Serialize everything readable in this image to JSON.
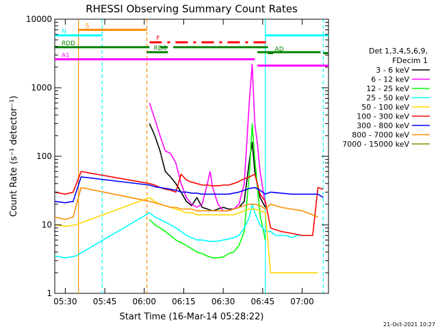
{
  "chart_data": {
    "type": "line",
    "title": "RHESSI Observing Summary Count Rates",
    "xlabel": "Start Time (16-Mar-14 05:28:22)",
    "ylabel": "Count Rate (s⁻¹ detector⁻¹)",
    "x_unit": "minutes",
    "xlim": [
      "05:26",
      "07:10"
    ],
    "ylim": [
      1,
      10000
    ],
    "yscale": "log",
    "x_ticks": [
      {
        "t": "05:30",
        "label": "05:30"
      },
      {
        "t": "05:45",
        "label": "05:45"
      },
      {
        "t": "06:00",
        "label": "06:00"
      },
      {
        "t": "06:15",
        "label": "06:15"
      },
      {
        "t": "06:30",
        "label": "06:30"
      },
      {
        "t": "06:45",
        "label": "06:45"
      },
      {
        "t": "07:00",
        "label": "07:00"
      }
    ],
    "y_ticks": [
      {
        "v": 1,
        "label": "1"
      },
      {
        "v": 10,
        "label": "10"
      },
      {
        "v": 100,
        "label": "100"
      },
      {
        "v": 1000,
        "label": "1000"
      },
      {
        "v": 10000,
        "label": "10000"
      }
    ],
    "legend": {
      "position": "right",
      "header": [
        "Det 1,3,4,5,6,9,",
        "FDecim 1"
      ],
      "entries": [
        {
          "name": "3 - 6 keV",
          "color": "#000000"
        },
        {
          "name": "6 - 12 keV",
          "color": "#ff00ff"
        },
        {
          "name": "12 - 25 keV",
          "color": "#00ff00"
        },
        {
          "name": "25 - 50 keV",
          "color": "#00ffff"
        },
        {
          "name": "50 - 100 keV",
          "color": "#ffd700"
        },
        {
          "name": "100 - 300 keV",
          "color": "#ff0000"
        },
        {
          "name": "300 - 800 keV",
          "color": "#0000ff"
        },
        {
          "name": "800 - 7000 keV",
          "color": "#ff8c00"
        },
        {
          "name": "7000 - 15000 keV",
          "color": "#8b8b00"
        }
      ]
    },
    "flags": [
      {
        "label": "S",
        "color": "#ff8c00",
        "y": 7000,
        "segments": [
          [
            "05:35",
            "06:01"
          ]
        ]
      },
      {
        "label": "N",
        "color": "#00ffff",
        "y": 5800,
        "segments": [
          [
            "05:26",
            "05:44"
          ],
          [
            "06:46",
            "07:10"
          ]
        ]
      },
      {
        "label": "F",
        "color": "#ff0000",
        "y": 4600,
        "dashed": true,
        "segments": [
          [
            "06:02",
            "06:47"
          ]
        ]
      },
      {
        "label": "RDD",
        "color": "#008000",
        "y": 3900,
        "segments": [
          [
            "05:26",
            "06:02"
          ],
          [
            "06:06",
            "06:09"
          ],
          [
            "06:11",
            "06:47"
          ]
        ]
      },
      {
        "label": "RD6",
        "color": "#008000",
        "y": 3300,
        "segments": [
          [
            "06:01",
            "06:09"
          ],
          [
            "06:43",
            "07:07"
          ]
        ]
      },
      {
        "label": "AD",
        "color": "#008000",
        "y": 3200,
        "segments": [
          [
            "06:47",
            "06:49"
          ],
          [
            "07:08",
            "07:10"
          ]
        ]
      },
      {
        "label": "A1",
        "color": "#ff00ff",
        "y": 2600,
        "segments": [
          [
            "05:26",
            "06:42"
          ]
        ]
      },
      {
        "label": "",
        "color": "#ff00ff",
        "y": 2100,
        "segments": [
          [
            "06:43",
            "07:10"
          ]
        ]
      }
    ],
    "vlines": [
      {
        "t": "05:35",
        "color": "#ff8c00",
        "dashed": false
      },
      {
        "t": "05:44",
        "color": "#00ffff",
        "dashed": true
      },
      {
        "t": "06:01",
        "color": "#ff8c00",
        "dashed": true
      },
      {
        "t": "06:46",
        "color": "#00ffff",
        "dashed": false
      },
      {
        "t": "07:08",
        "color": "#00ffff",
        "dashed": true
      }
    ],
    "series": [
      {
        "name": "3 - 6 keV",
        "color": "#000000",
        "points": [
          [
            "06:02",
            300
          ],
          [
            "06:04",
            200
          ],
          [
            "06:06",
            120
          ],
          [
            "06:08",
            60
          ],
          [
            "06:10",
            50
          ],
          [
            "06:12",
            40
          ],
          [
            "06:14",
            30
          ],
          [
            "06:16",
            22
          ],
          [
            "06:18",
            19
          ],
          [
            "06:20",
            25
          ],
          [
            "06:22",
            18
          ],
          [
            "06:24",
            17
          ],
          [
            "06:26",
            16
          ],
          [
            "06:28",
            17
          ],
          [
            "06:30",
            18
          ],
          [
            "06:32",
            17
          ],
          [
            "06:34",
            17
          ],
          [
            "06:36",
            18
          ],
          [
            "06:38",
            22
          ],
          [
            "06:40",
            90
          ],
          [
            "06:41",
            160
          ],
          [
            "06:42",
            60
          ],
          [
            "06:44",
            25
          ],
          [
            "06:46",
            18
          ]
        ]
      },
      {
        "name": "6 - 12 keV",
        "color": "#ff00ff",
        "points": [
          [
            "06:02",
            600
          ],
          [
            "06:04",
            350
          ],
          [
            "06:06",
            200
          ],
          [
            "06:08",
            120
          ],
          [
            "06:10",
            110
          ],
          [
            "06:12",
            80
          ],
          [
            "06:14",
            40
          ],
          [
            "06:16",
            25
          ],
          [
            "06:18",
            20
          ],
          [
            "06:20",
            18
          ],
          [
            "06:22",
            20
          ],
          [
            "06:24",
            40
          ],
          [
            "06:25",
            60
          ],
          [
            "06:26",
            35
          ],
          [
            "06:28",
            20
          ],
          [
            "06:30",
            16
          ],
          [
            "06:32",
            16
          ],
          [
            "06:34",
            17
          ],
          [
            "06:36",
            20
          ],
          [
            "06:38",
            40
          ],
          [
            "06:40",
            700
          ],
          [
            "06:41",
            2200
          ],
          [
            "06:42",
            300
          ],
          [
            "06:43",
            150
          ],
          [
            "06:44",
            60
          ],
          [
            "06:46",
            20
          ]
        ]
      },
      {
        "name": "12 - 25 keV",
        "color": "#00ff00",
        "points": [
          [
            "06:02",
            12
          ],
          [
            "06:04",
            10
          ],
          [
            "06:06",
            9
          ],
          [
            "06:08",
            8
          ],
          [
            "06:10",
            7
          ],
          [
            "06:12",
            6
          ],
          [
            "06:14",
            5.5
          ],
          [
            "06:16",
            5
          ],
          [
            "06:18",
            4.5
          ],
          [
            "06:20",
            4
          ],
          [
            "06:22",
            3.8
          ],
          [
            "06:24",
            3.5
          ],
          [
            "06:26",
            3.3
          ],
          [
            "06:28",
            3.3
          ],
          [
            "06:30",
            3.4
          ],
          [
            "06:32",
            3.8
          ],
          [
            "06:34",
            4
          ],
          [
            "06:36",
            5
          ],
          [
            "06:38",
            8
          ],
          [
            "06:40",
            60
          ],
          [
            "06:41",
            300
          ],
          [
            "06:42",
            90
          ],
          [
            "06:44",
            14
          ],
          [
            "06:46",
            6
          ]
        ]
      },
      {
        "name": "25 - 50 keV",
        "color": "#00ffff",
        "points": [
          [
            "05:26",
            3.5
          ],
          [
            "05:30",
            3.3
          ],
          [
            "05:34",
            3.5
          ],
          [
            "06:02",
            15
          ],
          [
            "06:04",
            13
          ],
          [
            "06:06",
            12
          ],
          [
            "06:08",
            11
          ],
          [
            "06:10",
            10
          ],
          [
            "06:12",
            9
          ],
          [
            "06:14",
            8
          ],
          [
            "06:16",
            7
          ],
          [
            "06:18",
            6.5
          ],
          [
            "06:20",
            6
          ],
          [
            "06:22",
            6
          ],
          [
            "06:24",
            5.8
          ],
          [
            "06:26",
            5.7
          ],
          [
            "06:28",
            5.8
          ],
          [
            "06:30",
            6
          ],
          [
            "06:32",
            6.2
          ],
          [
            "06:34",
            6.5
          ],
          [
            "06:36",
            7
          ],
          [
            "06:38",
            9
          ],
          [
            "06:40",
            13
          ],
          [
            "06:41",
            20
          ],
          [
            "06:42",
            15
          ],
          [
            "06:44",
            10
          ],
          [
            "06:46",
            8
          ],
          [
            "06:48",
            8
          ],
          [
            "06:50",
            7
          ],
          [
            "06:52",
            7
          ],
          [
            "06:54",
            7
          ],
          [
            "06:56",
            6.5
          ],
          [
            "06:58",
            7
          ],
          [
            "07:00",
            7
          ],
          [
            "07:02",
            7
          ],
          [
            "07:04",
            7
          ]
        ]
      },
      {
        "name": "50 - 100 keV",
        "color": "#ffd700",
        "points": [
          [
            "05:26",
            10
          ],
          [
            "05:30",
            9.5
          ],
          [
            "05:34",
            10
          ],
          [
            "06:02",
            25
          ],
          [
            "06:04",
            22
          ],
          [
            "06:06",
            20
          ],
          [
            "06:08",
            19
          ],
          [
            "06:10",
            18
          ],
          [
            "06:12",
            17
          ],
          [
            "06:14",
            16
          ],
          [
            "06:16",
            15
          ],
          [
            "06:18",
            15
          ],
          [
            "06:20",
            14
          ],
          [
            "06:22",
            14
          ],
          [
            "06:24",
            14
          ],
          [
            "06:26",
            14
          ],
          [
            "06:28",
            14
          ],
          [
            "06:30",
            14
          ],
          [
            "06:32",
            14
          ],
          [
            "06:34",
            14
          ],
          [
            "06:36",
            15
          ],
          [
            "06:38",
            16
          ],
          [
            "06:40",
            17
          ],
          [
            "06:42",
            17
          ],
          [
            "06:44",
            16
          ],
          [
            "06:46",
            15
          ],
          [
            "06:48",
            2
          ],
          [
            "07:06",
            2
          ]
        ]
      },
      {
        "name": "100 - 300 keV",
        "color": "#ff0000",
        "points": [
          [
            "05:26",
            30
          ],
          [
            "05:30",
            28
          ],
          [
            "05:33",
            30
          ],
          [
            "05:36",
            60
          ],
          [
            "06:02",
            40
          ],
          [
            "06:04",
            38
          ],
          [
            "06:06",
            35
          ],
          [
            "06:08",
            33
          ],
          [
            "06:10",
            32
          ],
          [
            "06:12",
            30
          ],
          [
            "06:14",
            55
          ],
          [
            "06:16",
            45
          ],
          [
            "06:18",
            42
          ],
          [
            "06:20",
            40
          ],
          [
            "06:22",
            38
          ],
          [
            "06:24",
            38
          ],
          [
            "06:26",
            37
          ],
          [
            "06:28",
            37
          ],
          [
            "06:30",
            38
          ],
          [
            "06:32",
            38
          ],
          [
            "06:34",
            40
          ],
          [
            "06:36",
            43
          ],
          [
            "06:38",
            47
          ],
          [
            "06:40",
            50
          ],
          [
            "06:42",
            55
          ],
          [
            "06:44",
            28
          ],
          [
            "06:46",
            22
          ],
          [
            "06:48",
            9
          ],
          [
            "06:52",
            8
          ],
          [
            "06:56",
            7.5
          ],
          [
            "07:00",
            7
          ],
          [
            "07:04",
            7
          ],
          [
            "07:06",
            35
          ],
          [
            "07:08",
            33
          ]
        ]
      },
      {
        "name": "300 - 800 keV",
        "color": "#0000ff",
        "points": [
          [
            "05:26",
            22
          ],
          [
            "05:30",
            21
          ],
          [
            "05:33",
            22
          ],
          [
            "05:36",
            50
          ],
          [
            "06:02",
            38
          ],
          [
            "06:04",
            36
          ],
          [
            "06:06",
            35
          ],
          [
            "06:08",
            34
          ],
          [
            "06:10",
            33
          ],
          [
            "06:12",
            32
          ],
          [
            "06:14",
            30
          ],
          [
            "06:16",
            30
          ],
          [
            "06:18",
            29
          ],
          [
            "06:20",
            29
          ],
          [
            "06:22",
            28
          ],
          [
            "06:24",
            28
          ],
          [
            "06:26",
            28
          ],
          [
            "06:28",
            28
          ],
          [
            "06:30",
            28
          ],
          [
            "06:32",
            28
          ],
          [
            "06:34",
            29
          ],
          [
            "06:36",
            30
          ],
          [
            "06:38",
            32
          ],
          [
            "06:40",
            34
          ],
          [
            "06:42",
            35
          ],
          [
            "06:44",
            32
          ],
          [
            "06:46",
            28
          ],
          [
            "06:48",
            30
          ],
          [
            "06:52",
            29
          ],
          [
            "06:56",
            28
          ],
          [
            "07:00",
            28
          ],
          [
            "07:04",
            28
          ],
          [
            "07:06",
            28
          ],
          [
            "07:08",
            25
          ]
        ]
      },
      {
        "name": "800 - 7000 keV",
        "color": "#ff8c00",
        "points": [
          [
            "05:26",
            13
          ],
          [
            "05:30",
            12
          ],
          [
            "05:33",
            13
          ],
          [
            "05:36",
            35
          ],
          [
            "06:02",
            22
          ],
          [
            "06:04",
            21
          ],
          [
            "06:06",
            20
          ],
          [
            "06:08",
            19
          ],
          [
            "06:10",
            18
          ],
          [
            "06:12",
            18
          ],
          [
            "06:14",
            17
          ],
          [
            "06:16",
            17
          ],
          [
            "06:18",
            17
          ],
          [
            "06:20",
            16
          ],
          [
            "06:22",
            16
          ],
          [
            "06:24",
            16
          ],
          [
            "06:26",
            16
          ],
          [
            "06:28",
            16
          ],
          [
            "06:30",
            16
          ],
          [
            "06:32",
            16
          ],
          [
            "06:34",
            17
          ],
          [
            "06:36",
            18
          ],
          [
            "06:38",
            19
          ],
          [
            "06:40",
            20
          ],
          [
            "06:42",
            20
          ],
          [
            "06:44",
            19
          ],
          [
            "06:46",
            17
          ],
          [
            "06:48",
            20
          ],
          [
            "06:52",
            18
          ],
          [
            "06:56",
            17
          ],
          [
            "07:00",
            16
          ],
          [
            "07:04",
            14
          ],
          [
            "07:06",
            13
          ]
        ]
      },
      {
        "name": "7000 - 15000 keV",
        "color": "#8b8b00",
        "points": []
      }
    ]
  },
  "footer": {
    "timestamp": "21-Oct-2021 10:27"
  }
}
